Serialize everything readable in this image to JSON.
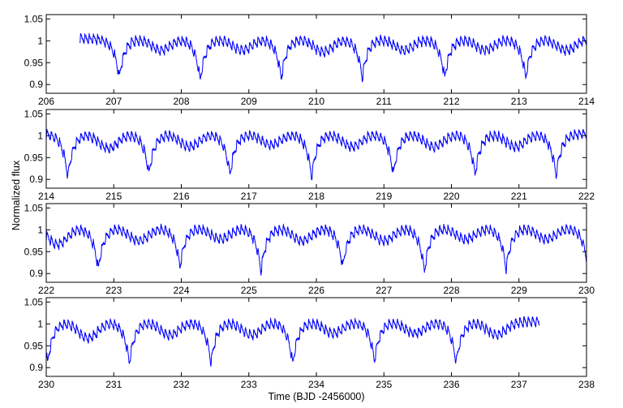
{
  "chart_data": {
    "type": "line",
    "title": "",
    "xlabel": "Time (BJD -2456000)",
    "ylabel": "Normalized flux",
    "line_color": "#0000ff",
    "axes_color": "#000000",
    "grid": false,
    "legend": null,
    "ylim": [
      0.88,
      1.06
    ],
    "yticks": [
      0.9,
      0.95,
      1,
      1.05
    ],
    "ytick_labels": [
      "0.9",
      "0.95",
      "1",
      "1.05"
    ],
    "panels": [
      {
        "xlim": [
          206,
          214
        ],
        "xticks": [
          206,
          207,
          208,
          209,
          210,
          211,
          212,
          213,
          214
        ],
        "xtick_labels": [
          "206",
          "207",
          "208",
          "209",
          "210",
          "211",
          "212",
          "213",
          "214"
        ],
        "data_range": [
          206.5,
          214.0
        ],
        "primary_minima": [
          {
            "t": 207.08,
            "flux": 0.905
          },
          {
            "t": 208.28,
            "flux": 0.9
          },
          {
            "t": 209.48,
            "flux": 0.905
          },
          {
            "t": 210.68,
            "flux": 0.905
          },
          {
            "t": 211.9,
            "flux": 0.905
          },
          {
            "t": 213.1,
            "flux": 0.905
          }
        ],
        "secondary_minima": [
          {
            "t": 207.7,
            "flux": 0.97
          },
          {
            "t": 208.9,
            "flux": 0.97
          },
          {
            "t": 210.1,
            "flux": 0.965
          },
          {
            "t": 211.3,
            "flux": 0.97
          },
          {
            "t": 212.5,
            "flux": 0.97
          },
          {
            "t": 213.7,
            "flux": 0.97
          }
        ]
      },
      {
        "xlim": [
          214,
          222
        ],
        "xticks": [
          214,
          215,
          216,
          217,
          218,
          219,
          220,
          221,
          222
        ],
        "xtick_labels": [
          "214",
          "215",
          "216",
          "217",
          "218",
          "219",
          "220",
          "221",
          "222"
        ],
        "data_range": [
          214.0,
          222.0
        ],
        "primary_minima": [
          {
            "t": 214.32,
            "flux": 0.895
          },
          {
            "t": 215.52,
            "flux": 0.902
          },
          {
            "t": 216.72,
            "flux": 0.9
          },
          {
            "t": 217.93,
            "flux": 0.895
          },
          {
            "t": 219.14,
            "flux": 0.902
          },
          {
            "t": 220.35,
            "flux": 0.9
          },
          {
            "t": 221.55,
            "flux": 0.898
          }
        ],
        "secondary_minima": [
          {
            "t": 214.92,
            "flux": 0.96
          },
          {
            "t": 216.12,
            "flux": 0.965
          },
          {
            "t": 217.33,
            "flux": 0.97
          },
          {
            "t": 218.53,
            "flux": 0.965
          },
          {
            "t": 219.74,
            "flux": 0.965
          },
          {
            "t": 220.95,
            "flux": 0.965
          }
        ]
      },
      {
        "xlim": [
          222,
          230
        ],
        "xticks": [
          222,
          223,
          224,
          225,
          226,
          227,
          228,
          229,
          230
        ],
        "xtick_labels": [
          "222",
          "223",
          "224",
          "225",
          "226",
          "227",
          "228",
          "229",
          "230"
        ],
        "data_range": [
          222.0,
          230.0
        ],
        "primary_minima": [
          {
            "t": 222.77,
            "flux": 0.9
          },
          {
            "t": 223.98,
            "flux": 0.905
          },
          {
            "t": 225.18,
            "flux": 0.895
          },
          {
            "t": 226.39,
            "flux": 0.905
          },
          {
            "t": 227.6,
            "flux": 0.895
          },
          {
            "t": 228.81,
            "flux": 0.9
          },
          {
            "t": 230.0,
            "flux": 0.925
          }
        ],
        "secondary_minima": [
          {
            "t": 222.17,
            "flux": 0.955
          },
          {
            "t": 223.37,
            "flux": 0.965
          },
          {
            "t": 224.58,
            "flux": 0.97
          },
          {
            "t": 225.79,
            "flux": 0.965
          },
          {
            "t": 227.0,
            "flux": 0.965
          },
          {
            "t": 228.21,
            "flux": 0.97
          },
          {
            "t": 229.41,
            "flux": 0.97
          }
        ]
      },
      {
        "xlim": [
          230,
          238
        ],
        "xticks": [
          230,
          231,
          232,
          233,
          234,
          235,
          236,
          237,
          238
        ],
        "xtick_labels": [
          "230",
          "231",
          "232",
          "233",
          "234",
          "235",
          "236",
          "237",
          "238"
        ],
        "data_range": [
          230.0,
          237.3
        ],
        "primary_minima": [
          {
            "t": 230.02,
            "flux": 0.9
          },
          {
            "t": 231.23,
            "flux": 0.9
          },
          {
            "t": 232.44,
            "flux": 0.9
          },
          {
            "t": 233.65,
            "flux": 0.898
          },
          {
            "t": 234.86,
            "flux": 0.905
          },
          {
            "t": 236.07,
            "flux": 0.9
          }
        ],
        "secondary_minima": [
          {
            "t": 230.62,
            "flux": 0.955
          },
          {
            "t": 231.83,
            "flux": 0.965
          },
          {
            "t": 233.04,
            "flux": 0.965
          },
          {
            "t": 234.25,
            "flux": 0.97
          },
          {
            "t": 235.46,
            "flux": 0.97
          },
          {
            "t": 236.67,
            "flux": 0.965
          }
        ]
      }
    ],
    "model": {
      "baseline": 1.005,
      "pulsation_period_days": 0.0625,
      "pulsation_amplitude": 0.022,
      "primary_width_days": 0.13,
      "secondary_width_days": 0.28,
      "samples_per_day": 420
    }
  }
}
